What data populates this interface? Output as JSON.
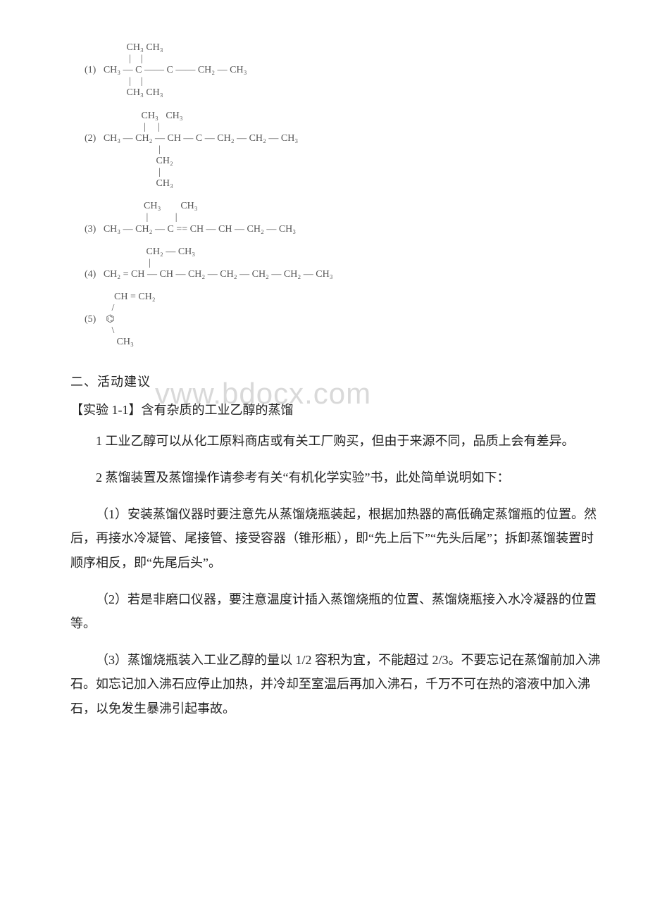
{
  "chem": {
    "lines": [
      "                 CH₃ CH₃",
      "                  |    |",
      "(1)   CH₃ — C —— C —— CH₂ — CH₃",
      "                  |    |",
      "                 CH₃ CH₃",
      "",
      "                       CH₃   CH₃",
      "                        |     |",
      "(2)   CH₃ — CH₂ — CH — C — CH₂ — CH₂ — CH₃",
      "                              |",
      "                             CH₂",
      "                              |",
      "                             CH₃",
      "",
      "                        CH₃        CH₃",
      "                         |           |",
      "(3)   CH₃ — CH₂ — C == CH — CH — CH₂ — CH₃",
      "",
      "                         CH₂ — CH₃",
      "                          |",
      "(4)   CH₂ = CH — CH — CH₂ — CH₂ — CH₂ — CH₂ — CH₃",
      "",
      "            CH = CH₂",
      "           /",
      "(5)    ⌬",
      "           \\",
      "             CH₃"
    ]
  },
  "watermark": "vww.bdocx.com",
  "headings": {
    "section2": "二、活动建议",
    "exp": "【实验 1-1】含有杂质的工业乙醇的蒸馏"
  },
  "paragraphs": {
    "p1": "1 工业乙醇可以从化工原料商店或有关工厂购买，但由于来源不同，品质上会有差异。",
    "p2": "2 蒸馏装置及蒸馏操作请参考有关“有机化学实验”书，此处简单说明如下：",
    "p3": "（1）安装蒸馏仪器时要注意先从蒸馏烧瓶装起，根据加热器的高低确定蒸馏瓶的位置。然后，再接水冷凝管、尾接管、接受容器（锥形瓶），即“先上后下”“先头后尾”；拆卸蒸馏装置时顺序相反，即“先尾后头”。",
    "p4": "（2）若是非磨口仪器，要注意温度计插入蒸馏烧瓶的位置、蒸馏烧瓶接入水冷凝器的位置等。",
    "p5": "（3）蒸馏烧瓶装入工业乙醇的量以 1/2 容积为宜，不能超过 2/3。不要忘记在蒸馏前加入沸石。如忘记加入沸石应停止加热，并冷却至室温后再加入沸石，千万不可在热的溶液中加入沸石，以免发生暴沸引起事故。"
  }
}
